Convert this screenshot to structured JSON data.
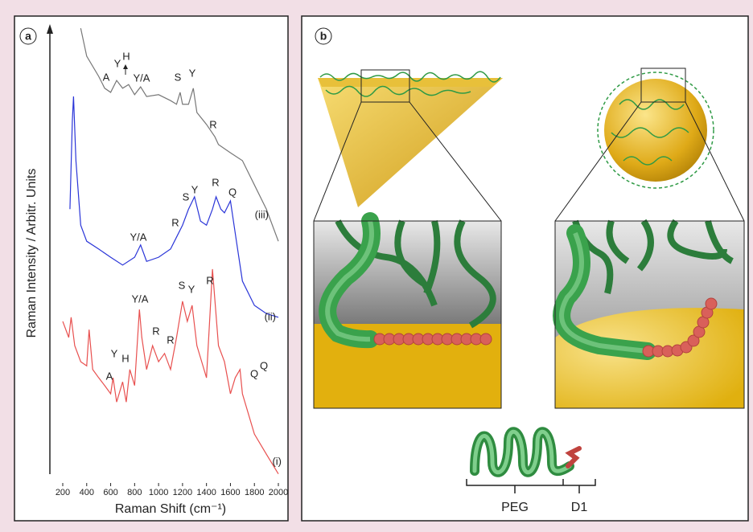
{
  "panel_a": {
    "label": "a",
    "peak_labels": [
      "A",
      "Y",
      "H",
      "Y/A",
      "S",
      "Y",
      "R",
      "Y/A",
      "R",
      "S",
      "Y",
      "R",
      "Q",
      "Y/A",
      "S",
      "Y",
      "R",
      "R",
      "R",
      "Y",
      "H",
      "A",
      "Q",
      "Q"
    ],
    "chart_data": {
      "type": "line",
      "x_label": "Raman Shift (cm⁻¹)",
      "y_label": "Raman Intensity / Arbitr. Units",
      "xlim": [
        200,
        2000
      ],
      "xticks": [
        200,
        400,
        600,
        800,
        1000,
        1200,
        1400,
        1600,
        1800,
        2000
      ],
      "ylim": [
        0,
        100
      ],
      "series": [
        {
          "name": "(i)",
          "color": "#e8504f",
          "x": [
            200,
            250,
            270,
            300,
            350,
            400,
            420,
            450,
            500,
            550,
            600,
            620,
            650,
            700,
            730,
            760,
            800,
            840,
            860,
            900,
            950,
            1000,
            1050,
            1100,
            1150,
            1200,
            1240,
            1280,
            1320,
            1400,
            1450,
            1500,
            1550,
            1600,
            1640,
            1680,
            1700,
            1800,
            1900,
            2000
          ],
          "values": [
            35.1,
            31.6,
            36.0,
            29.8,
            26.3,
            25.4,
            33.3,
            24.6,
            22.8,
            21.1,
            19.3,
            22.8,
            17.5,
            21.9,
            17.5,
            24.6,
            21.1,
            37.7,
            31.6,
            24.6,
            29.8,
            26.3,
            28.1,
            24.6,
            31.6,
            39.5,
            35.1,
            38.6,
            29.8,
            22.8,
            46.5,
            29.8,
            26.3,
            19.3,
            22.8,
            24.6,
            19.3,
            10.5,
            6.1,
            1.8
          ]
        },
        {
          "name": "(ii)",
          "color": "#2a35d8",
          "x": [
            260,
            280,
            290,
            310,
            350,
            400,
            500,
            600,
            700,
            800,
            850,
            900,
            1000,
            1100,
            1150,
            1200,
            1250,
            1300,
            1350,
            1400,
            1450,
            1480,
            1520,
            1550,
            1600,
            1650,
            1700,
            1800,
            1900,
            2000
          ],
          "values": [
            59.6,
            78.9,
            84.2,
            70.2,
            56.1,
            52.6,
            50.9,
            49.1,
            47.4,
            49.1,
            51.8,
            48.2,
            49.1,
            50.9,
            53.5,
            56.1,
            59.6,
            62.3,
            57.0,
            56.1,
            59.6,
            62.3,
            59.6,
            58.8,
            61.4,
            52.6,
            43.9,
            38.6,
            36.8,
            36.0
          ]
        },
        {
          "name": "(iii)",
          "color": "#777777",
          "x": [
            350,
            400,
            500,
            550,
            600,
            650,
            700,
            750,
            800,
            850,
            900,
            1000,
            1100,
            1150,
            1180,
            1200,
            1250,
            1290,
            1320,
            1400,
            1470,
            1500,
            1600,
            1700,
            1800,
            1900,
            2000
          ],
          "values": [
            99.1,
            93.0,
            88.6,
            86.0,
            85.1,
            87.7,
            86.0,
            86.8,
            84.6,
            86.3,
            84.2,
            84.6,
            83.3,
            82.5,
            85.1,
            82.5,
            82.5,
            86.0,
            80.7,
            78.1,
            75.4,
            73.7,
            71.9,
            70.2,
            64.9,
            59.6,
            52.6
          ]
        }
      ]
    }
  },
  "panel_b": {
    "label": "b",
    "peg": "PEG",
    "d1": "D1"
  }
}
